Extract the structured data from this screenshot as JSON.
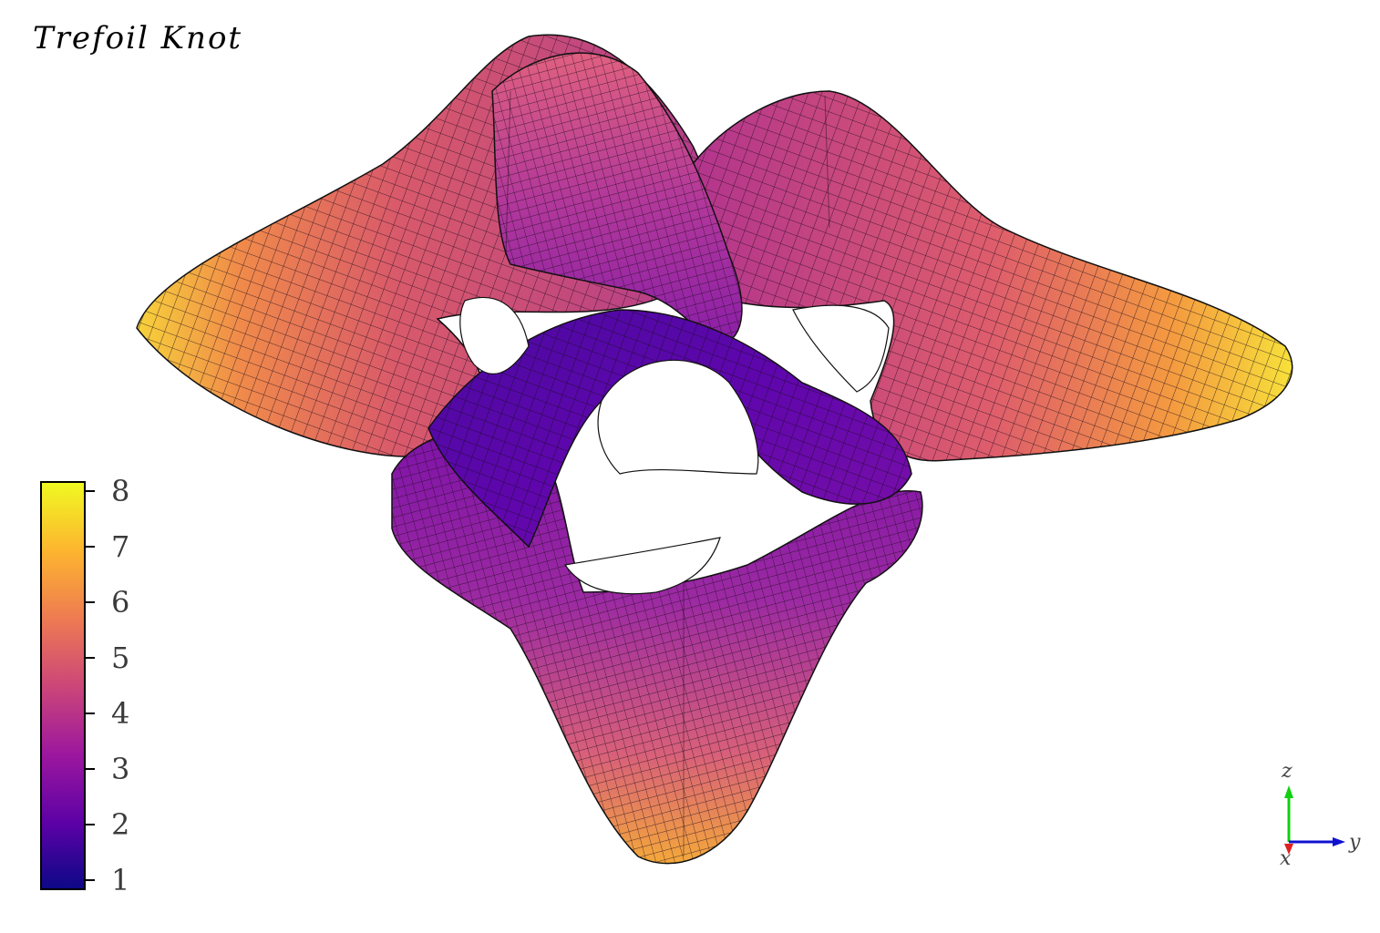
{
  "chart_data": {
    "type": "surface",
    "title": "Trefoil Knot",
    "colormap": "plasma",
    "colorbar": {
      "ticks": [
        "1",
        "2",
        "3",
        "4",
        "5",
        "6",
        "7",
        "8"
      ],
      "range": [
        0.82,
        8.18
      ],
      "colors": [
        "#0d0887",
        "#5c01a6",
        "#9c179e",
        "#cc4778",
        "#ed7953",
        "#fdb42f",
        "#f0f921"
      ]
    },
    "grid_mesh": true,
    "axes_triad": {
      "x": "x",
      "y": "y",
      "z": "z"
    },
    "triad_colors": {
      "x": "#e02020",
      "y": "#1010d0",
      "z": "#10d010"
    }
  }
}
